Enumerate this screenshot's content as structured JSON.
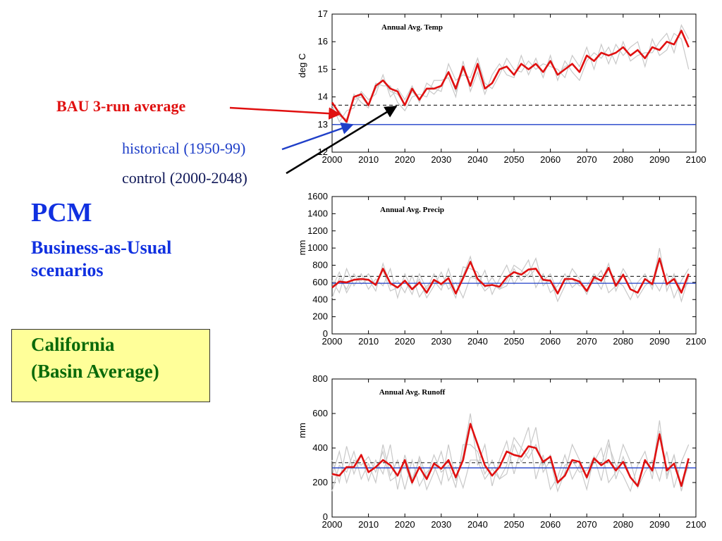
{
  "annotations": {
    "bau_label": "BAU 3-run average",
    "historical_label": "historical (1950-99)",
    "control_label": "control (2000-2048)"
  },
  "title": {
    "main": "PCM",
    "subtitle": "Business-as-Usual scenarios"
  },
  "region_box": {
    "line1": "California",
    "line2": "(Basin Average)"
  },
  "colors": {
    "bau": "#e01010",
    "runs": "#c8c8c8",
    "historical": "#1f3fc8",
    "control": "#333333",
    "title": "#1030e0",
    "region_text": "#0a6a0a",
    "region_box": "#ffff99"
  },
  "chart_data": [
    {
      "type": "line",
      "title": "Annual Avg. Temp",
      "xlabel": "",
      "ylabel": "deg C",
      "xlim": [
        2000,
        2100
      ],
      "ylim": [
        12,
        17
      ],
      "xticks": [
        2000,
        2010,
        2020,
        2030,
        2040,
        2050,
        2060,
        2070,
        2080,
        2090,
        2100
      ],
      "yticks": [
        12,
        13,
        14,
        15,
        16,
        17
      ],
      "grid": false,
      "historical_level": 13.0,
      "control_level": 13.7,
      "x": [
        2000,
        2002,
        2004,
        2006,
        2008,
        2010,
        2012,
        2014,
        2016,
        2018,
        2020,
        2022,
        2024,
        2026,
        2028,
        2030,
        2032,
        2034,
        2036,
        2038,
        2040,
        2042,
        2044,
        2046,
        2048,
        2050,
        2052,
        2054,
        2056,
        2058,
        2060,
        2062,
        2064,
        2066,
        2068,
        2070,
        2072,
        2074,
        2076,
        2078,
        2080,
        2082,
        2084,
        2086,
        2088,
        2090,
        2092,
        2094,
        2096,
        2098
      ],
      "series": [
        {
          "values": [
            13.6,
            13.3,
            13.2,
            13.9,
            14.0,
            13.7,
            14.3,
            14.6,
            14.2,
            14.1,
            13.7,
            14.2,
            13.9,
            14.3,
            14.1,
            14.4,
            14.9,
            14.2,
            15.0,
            14.4,
            15.1,
            14.3,
            14.5,
            15.0,
            15.1,
            14.8,
            15.2,
            15.0,
            15.2,
            14.9,
            15.3,
            14.8,
            15.1,
            15.2,
            14.9,
            15.5,
            15.3,
            15.6,
            15.5,
            15.6,
            15.8,
            15.5,
            15.7,
            15.4,
            15.8,
            15.7,
            16.0,
            15.9,
            16.4,
            15.8
          ]
        },
        {
          "values": [
            13.7,
            13.1,
            13.5,
            13.6,
            14.2,
            13.9,
            14.1,
            14.8,
            14.0,
            14.3,
            13.9,
            14.4,
            13.8,
            14.5,
            14.3,
            14.2,
            15.2,
            14.6,
            14.8,
            14.7,
            15.4,
            14.5,
            14.3,
            14.8,
            15.4,
            15.0,
            14.9,
            15.3,
            15.0,
            15.2,
            15.1,
            15.0,
            14.7,
            15.5,
            15.1,
            15.8,
            15.0,
            15.9,
            15.2,
            15.9,
            15.5,
            15.8,
            16.0,
            15.1,
            16.1,
            15.5,
            15.7,
            16.3,
            16.1,
            15.0
          ]
        },
        {
          "values": [
            13.3,
            13.5,
            13.0,
            14.1,
            13.8,
            13.6,
            14.5,
            14.4,
            14.4,
            13.8,
            13.5,
            14.0,
            14.1,
            14.0,
            14.6,
            14.6,
            14.7,
            14.0,
            15.3,
            14.2,
            14.9,
            14.1,
            14.8,
            15.2,
            14.8,
            14.7,
            15.5,
            14.8,
            15.4,
            14.7,
            15.5,
            14.6,
            15.3,
            14.9,
            14.6,
            15.3,
            15.6,
            15.4,
            15.8,
            15.2,
            16.0,
            15.3,
            15.5,
            15.6,
            15.6,
            16.0,
            16.3,
            15.6,
            16.6,
            16.1
          ]
        },
        {
          "values": [
            13.8,
            13.4,
            13.1,
            14.0,
            14.1,
            13.7,
            14.4,
            14.6,
            14.3,
            14.2,
            13.7,
            14.3,
            13.9,
            14.3,
            14.3,
            14.4,
            14.9,
            14.3,
            15.1,
            14.4,
            15.2,
            14.3,
            14.5,
            15.0,
            15.1,
            14.8,
            15.2,
            15.0,
            15.2,
            14.9,
            15.3,
            14.8,
            15.0,
            15.2,
            14.9,
            15.5,
            15.3,
            15.6,
            15.5,
            15.6,
            15.8,
            15.5,
            15.7,
            15.4,
            15.8,
            15.7,
            16.0,
            15.9,
            16.4,
            15.8
          ]
        }
      ]
    },
    {
      "type": "line",
      "title": "Annual Avg. Precip",
      "xlabel": "",
      "ylabel": "mm",
      "xlim": [
        2000,
        2100
      ],
      "ylim": [
        0,
        1600
      ],
      "xticks": [
        2000,
        2010,
        2020,
        2030,
        2040,
        2050,
        2060,
        2070,
        2080,
        2090,
        2100
      ],
      "yticks": [
        0,
        200,
        400,
        600,
        800,
        1000,
        1200,
        1400,
        1600
      ],
      "grid": false,
      "historical_level": 590,
      "control_level": 670,
      "x": [
        2000,
        2002,
        2004,
        2006,
        2008,
        2010,
        2012,
        2014,
        2016,
        2018,
        2020,
        2022,
        2024,
        2026,
        2028,
        2030,
        2032,
        2034,
        2036,
        2038,
        2040,
        2042,
        2044,
        2046,
        2048,
        2050,
        2052,
        2054,
        2056,
        2058,
        2060,
        2062,
        2064,
        2066,
        2068,
        2070,
        2072,
        2074,
        2076,
        2078,
        2080,
        2082,
        2084,
        2086,
        2088,
        2090,
        2092,
        2094,
        2096,
        2098
      ],
      "series": [
        {
          "values": [
            420,
            650,
            520,
            700,
            580,
            640,
            500,
            820,
            560,
            620,
            480,
            680,
            430,
            560,
            620,
            510,
            760,
            480,
            680,
            900,
            560,
            740,
            460,
            640,
            800,
            580,
            720,
            860,
            540,
            700,
            480,
            560,
            700,
            540,
            620,
            460,
            660,
            520,
            760,
            620,
            560,
            400,
            600,
            700,
            520,
            860,
            560,
            680,
            500,
            600
          ]
        },
        {
          "values": [
            620,
            480,
            760,
            560,
            700,
            520,
            640,
            560,
            760,
            420,
            700,
            520,
            640,
            420,
            560,
            720,
            520,
            600,
            420,
            660,
            640,
            500,
            580,
            520,
            560,
            760,
            620,
            700,
            880,
            560,
            640,
            380,
            560,
            760,
            640,
            500,
            620,
            740,
            480,
            560,
            760,
            620,
            420,
            560,
            640,
            500,
            700,
            420,
            620,
            760
          ]
        },
        {
          "values": [
            540,
            720,
            480,
            640,
            620,
            700,
            560,
            740,
            500,
            540,
            620,
            460,
            700,
            520,
            700,
            560,
            600,
            420,
            780,
            760,
            720,
            540,
            660,
            520,
            620,
            800,
            740,
            660,
            760,
            620,
            700,
            480,
            620,
            640,
            560,
            560,
            700,
            600,
            820,
            500,
            700,
            520,
            480,
            640,
            560,
            1000,
            500,
            700,
            380,
            660
          ]
        },
        {
          "values": [
            540,
            610,
            600,
            630,
            640,
            630,
            570,
            760,
            590,
            540,
            620,
            520,
            600,
            480,
            630,
            580,
            650,
            470,
            650,
            840,
            640,
            560,
            570,
            550,
            660,
            720,
            690,
            750,
            760,
            630,
            620,
            470,
            640,
            640,
            610,
            500,
            660,
            620,
            770,
            560,
            690,
            520,
            480,
            640,
            580,
            880,
            580,
            640,
            480,
            700
          ]
        }
      ]
    },
    {
      "type": "line",
      "title": "Annual Avg. Runoff",
      "xlabel": "",
      "ylabel": "mm",
      "xlim": [
        2000,
        2100
      ],
      "ylim": [
        0,
        800
      ],
      "xticks": [
        2000,
        2010,
        2020,
        2030,
        2040,
        2050,
        2060,
        2070,
        2080,
        2090,
        2100
      ],
      "yticks": [
        0,
        200,
        400,
        600,
        800
      ],
      "grid": false,
      "historical_level": 285,
      "control_level": 315,
      "x": [
        2000,
        2002,
        2004,
        2006,
        2008,
        2010,
        2012,
        2014,
        2016,
        2018,
        2020,
        2022,
        2024,
        2026,
        2028,
        2030,
        2032,
        2034,
        2036,
        2038,
        2040,
        2042,
        2044,
        2046,
        2048,
        2050,
        2052,
        2054,
        2056,
        2058,
        2060,
        2062,
        2064,
        2066,
        2068,
        2070,
        2072,
        2074,
        2076,
        2078,
        2080,
        2082,
        2084,
        2086,
        2088,
        2090,
        2092,
        2094,
        2096,
        2098
      ],
      "series": [
        {
          "values": [
            150,
            300,
            260,
            380,
            220,
            310,
            200,
            420,
            240,
            330,
            160,
            330,
            180,
            260,
            300,
            190,
            420,
            210,
            360,
            600,
            300,
            420,
            180,
            330,
            440,
            250,
            400,
            520,
            220,
            360,
            160,
            230,
            360,
            220,
            300,
            160,
            350,
            210,
            420,
            300,
            240,
            150,
            300,
            380,
            220,
            500,
            240,
            360,
            180,
            300
          ]
        },
        {
          "values": [
            330,
            200,
            410,
            250,
            360,
            210,
            330,
            250,
            420,
            160,
            360,
            220,
            330,
            160,
            260,
            380,
            210,
            290,
            170,
            330,
            330,
            220,
            280,
            220,
            250,
            420,
            320,
            380,
            520,
            260,
            330,
            150,
            260,
            420,
            330,
            220,
            320,
            400,
            200,
            260,
            420,
            320,
            170,
            260,
            330,
            210,
            380,
            170,
            320,
            420
          ]
        },
        {
          "values": [
            240,
            380,
            200,
            330,
            300,
            350,
            260,
            380,
            210,
            240,
            300,
            190,
            350,
            230,
            360,
            260,
            300,
            170,
            420,
            420,
            380,
            250,
            330,
            220,
            300,
            460,
            400,
            340,
            420,
            300,
            360,
            190,
            300,
            330,
            260,
            270,
            350,
            300,
            450,
            220,
            350,
            230,
            190,
            330,
            260,
            560,
            220,
            360,
            150,
            330
          ]
        },
        {
          "values": [
            250,
            240,
            290,
            290,
            360,
            260,
            290,
            330,
            300,
            240,
            330,
            200,
            290,
            220,
            310,
            280,
            330,
            230,
            330,
            540,
            420,
            300,
            240,
            290,
            380,
            360,
            350,
            410,
            400,
            320,
            350,
            200,
            240,
            330,
            320,
            230,
            340,
            300,
            330,
            270,
            320,
            230,
            180,
            330,
            270,
            480,
            270,
            310,
            180,
            340
          ]
        }
      ]
    }
  ]
}
